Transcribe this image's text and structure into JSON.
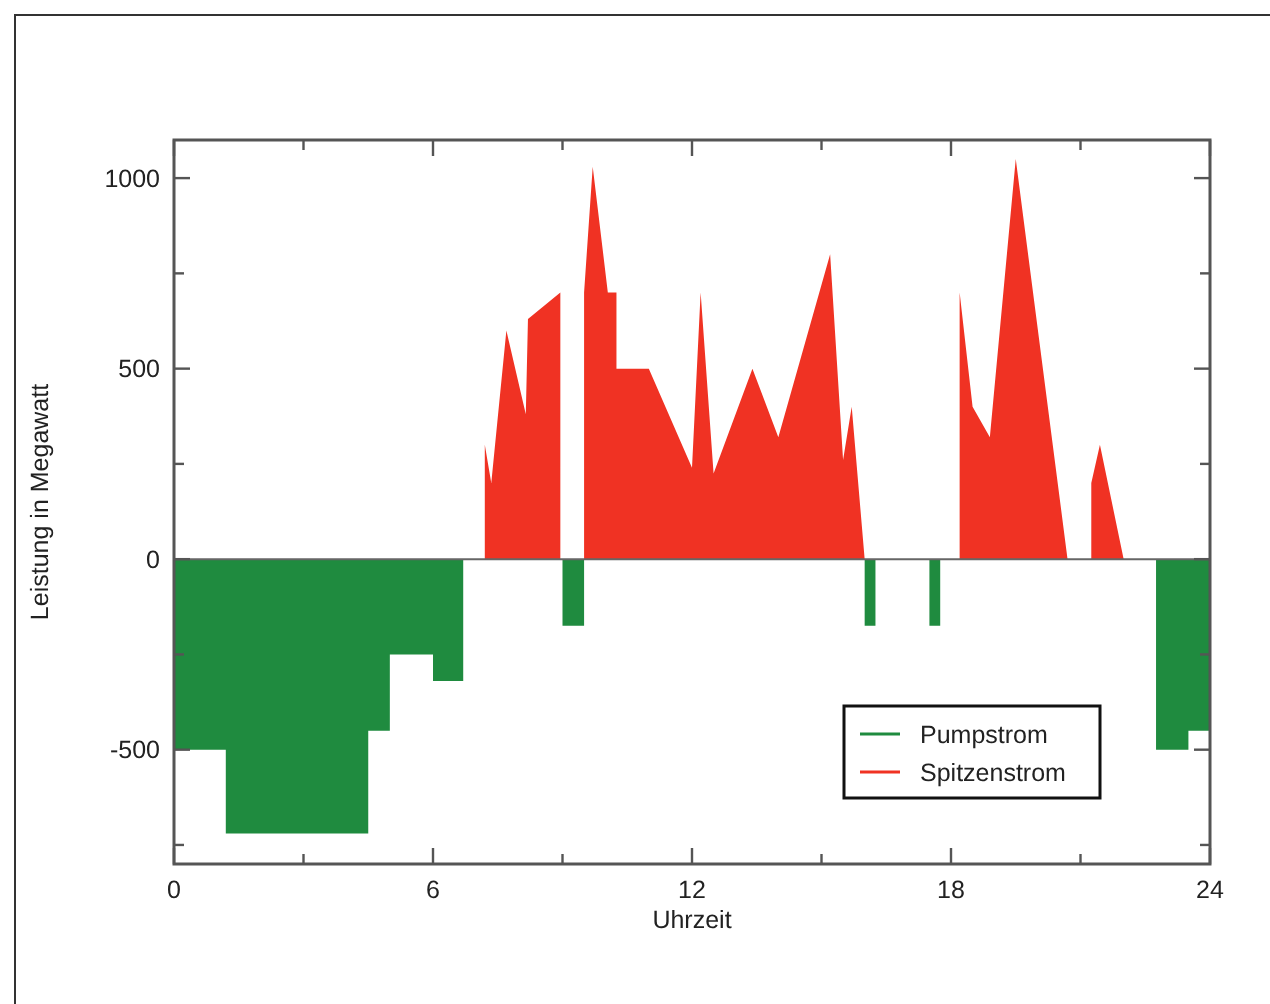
{
  "chart_data": {
    "type": "area",
    "xlabel": "Uhrzeit",
    "ylabel": "Leistung in Megawatt",
    "xlim": [
      0,
      24
    ],
    "xticks": [
      0,
      {
        "value": 3,
        "label": null
      },
      6,
      {
        "value": 9,
        "label": null
      },
      12,
      {
        "value": 15,
        "label": null
      },
      18,
      {
        "value": 21,
        "label": null
      },
      24
    ],
    "ylim": [
      -800,
      1100
    ],
    "yticks": [
      {
        "value": -750,
        "label": null
      },
      -500,
      {
        "value": -250,
        "label": null
      },
      0,
      {
        "value": 250,
        "label": null
      },
      500,
      {
        "value": 750,
        "label": null
      },
      1000
    ],
    "series": [
      {
        "name": "Pumpstrom",
        "color": "#1f8b3f",
        "x": [
          0,
          1.2,
          1.2,
          4.5,
          4.5,
          5,
          5,
          6,
          6,
          6.7,
          6.7,
          9,
          9,
          9.5,
          9.5,
          16,
          16,
          16.25,
          16.25,
          17.5,
          17.5,
          17.75,
          17.75,
          22.75,
          22.75,
          23.5,
          23.5,
          24
        ],
        "values": [
          -500,
          -500,
          -720,
          -720,
          -450,
          -450,
          -250,
          -250,
          -320,
          -320,
          0,
          0,
          -175,
          -175,
          0,
          0,
          -175,
          -175,
          0,
          0,
          -175,
          -175,
          0,
          0,
          -500,
          -500,
          -450,
          -450
        ]
      },
      {
        "name": "Spitzenstrom",
        "color": "#f03223",
        "x": [
          7.2,
          7.2,
          7.35,
          7.7,
          8.15,
          8.2,
          8.95,
          8.95,
          9.5,
          9.5,
          9.7,
          10.05,
          10.25,
          10.25,
          11,
          12,
          12.2,
          12.5,
          13.4,
          14,
          15.2,
          15.5,
          15.7,
          16,
          18.2,
          18.2,
          18.5,
          18.9,
          19.5,
          20.7,
          21.25,
          21.25,
          21.45,
          22
        ],
        "values": [
          0,
          300,
          200,
          600,
          380,
          630,
          700,
          0,
          0,
          700,
          1030,
          700,
          700,
          500,
          500,
          240,
          700,
          225,
          500,
          320,
          800,
          260,
          400,
          0,
          0,
          700,
          400,
          320,
          1050,
          0,
          0,
          200,
          300,
          0
        ]
      }
    ],
    "ref_lines": [
      {
        "axis": "y",
        "value": 0,
        "color": "#666666"
      }
    ],
    "legend": "bottom right"
  }
}
